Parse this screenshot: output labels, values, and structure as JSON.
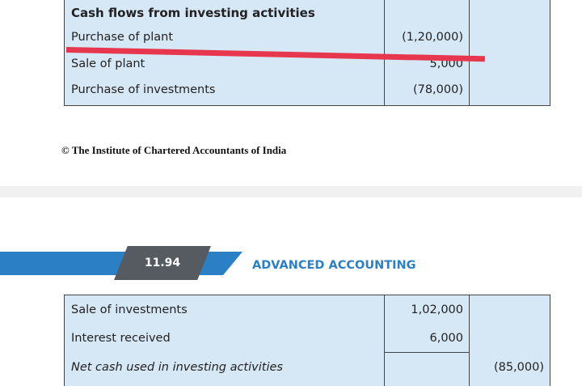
{
  "table_top": {
    "heading": "Cash flows from investing activities",
    "rows": [
      {
        "label": "Purchase of plant",
        "amount": "(1,20,000)"
      },
      {
        "label": "Sale of plant",
        "amount": "5,000"
      },
      {
        "label": "Purchase of investments",
        "amount": "(78,000)"
      }
    ]
  },
  "footer": {
    "copyright": "© The Institute of Chartered Accountants of India"
  },
  "page_header": {
    "page_number": "11.94",
    "title": "ADVANCED ACCOUNTING"
  },
  "table_bottom": {
    "rows": [
      {
        "label": "Sale of investments",
        "amount": "1,02,000",
        "total": ""
      },
      {
        "label": "Interest received",
        "amount": "6,000",
        "total": ""
      },
      {
        "label": "Net cash used in investing activities",
        "amount": "",
        "total": "(85,000)"
      }
    ]
  },
  "colors": {
    "table_fill": "#d6e7f5",
    "accent_blue": "#2a7fc5",
    "page_box": "#555b61",
    "strike_red": "#e6374e"
  }
}
